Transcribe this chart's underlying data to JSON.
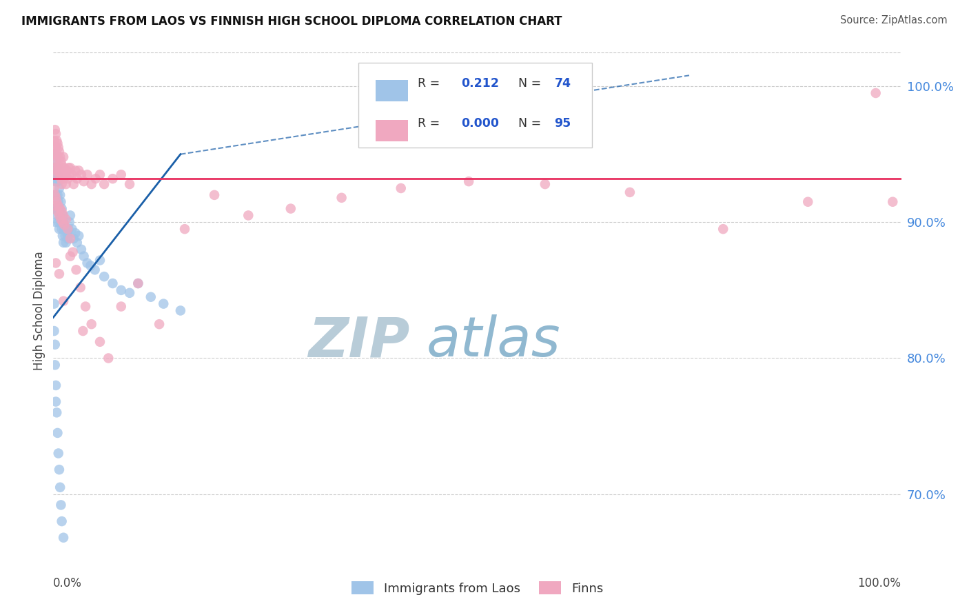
{
  "title": "IMMIGRANTS FROM LAOS VS FINNISH HIGH SCHOOL DIPLOMA CORRELATION CHART",
  "source": "Source: ZipAtlas.com",
  "ylabel": "High School Diploma",
  "xlim": [
    0.0,
    1.0
  ],
  "ylim": [
    0.645,
    1.025
  ],
  "ytick_positions": [
    0.7,
    0.8,
    0.9,
    1.0
  ],
  "ytick_labels": [
    "70.0%",
    "80.0%",
    "90.0%",
    "100.0%"
  ],
  "legend_blue_r": "0.212",
  "legend_blue_n": "74",
  "legend_pink_r": "0.000",
  "legend_pink_n": "95",
  "legend_label_blue": "Immigrants from Laos",
  "legend_label_pink": "Finns",
  "blue_color": "#a0c4e8",
  "pink_color": "#f0a8c0",
  "trend_blue_color": "#1a5fa8",
  "trend_pink_color": "#e83060",
  "watermark_zip_color": "#b0c8d8",
  "watermark_atlas_color": "#90b8d0",
  "blue_dots_x": [
    0.001,
    0.001,
    0.001,
    0.002,
    0.002,
    0.002,
    0.002,
    0.003,
    0.003,
    0.003,
    0.003,
    0.004,
    0.004,
    0.004,
    0.005,
    0.005,
    0.005,
    0.006,
    0.006,
    0.006,
    0.007,
    0.007,
    0.007,
    0.008,
    0.008,
    0.009,
    0.009,
    0.01,
    0.01,
    0.011,
    0.011,
    0.012,
    0.012,
    0.013,
    0.014,
    0.015,
    0.016,
    0.017,
    0.018,
    0.019,
    0.02,
    0.022,
    0.024,
    0.026,
    0.028,
    0.03,
    0.033,
    0.036,
    0.04,
    0.044,
    0.049,
    0.055,
    0.06,
    0.07,
    0.08,
    0.09,
    0.1,
    0.115,
    0.13,
    0.15,
    0.001,
    0.001,
    0.002,
    0.002,
    0.003,
    0.003,
    0.004,
    0.005,
    0.006,
    0.007,
    0.008,
    0.009,
    0.01,
    0.012
  ],
  "blue_dots_y": [
    0.94,
    0.92,
    0.91,
    0.95,
    0.93,
    0.92,
    0.91,
    0.945,
    0.935,
    0.92,
    0.9,
    0.94,
    0.93,
    0.91,
    0.935,
    0.92,
    0.905,
    0.93,
    0.915,
    0.9,
    0.925,
    0.91,
    0.895,
    0.92,
    0.905,
    0.915,
    0.9,
    0.91,
    0.895,
    0.905,
    0.89,
    0.9,
    0.885,
    0.895,
    0.89,
    0.885,
    0.892,
    0.888,
    0.895,
    0.9,
    0.905,
    0.895,
    0.888,
    0.892,
    0.885,
    0.89,
    0.88,
    0.875,
    0.87,
    0.868,
    0.865,
    0.872,
    0.86,
    0.855,
    0.85,
    0.848,
    0.855,
    0.845,
    0.84,
    0.835,
    0.84,
    0.82,
    0.81,
    0.795,
    0.78,
    0.768,
    0.76,
    0.745,
    0.73,
    0.718,
    0.705,
    0.692,
    0.68,
    0.668
  ],
  "pink_dots_x": [
    0.001,
    0.001,
    0.002,
    0.002,
    0.002,
    0.003,
    0.003,
    0.003,
    0.004,
    0.004,
    0.004,
    0.005,
    0.005,
    0.005,
    0.006,
    0.006,
    0.007,
    0.007,
    0.008,
    0.008,
    0.009,
    0.009,
    0.01,
    0.01,
    0.011,
    0.012,
    0.012,
    0.013,
    0.014,
    0.015,
    0.016,
    0.017,
    0.018,
    0.019,
    0.02,
    0.022,
    0.024,
    0.026,
    0.028,
    0.03,
    0.033,
    0.036,
    0.04,
    0.045,
    0.05,
    0.055,
    0.06,
    0.07,
    0.08,
    0.09,
    0.001,
    0.002,
    0.003,
    0.003,
    0.004,
    0.005,
    0.006,
    0.007,
    0.008,
    0.009,
    0.01,
    0.011,
    0.012,
    0.013,
    0.015,
    0.017,
    0.02,
    0.023,
    0.027,
    0.032,
    0.038,
    0.045,
    0.055,
    0.065,
    0.08,
    0.1,
    0.125,
    0.155,
    0.19,
    0.23,
    0.28,
    0.34,
    0.41,
    0.49,
    0.58,
    0.68,
    0.79,
    0.89,
    0.97,
    0.99,
    0.003,
    0.007,
    0.012,
    0.02,
    0.035
  ],
  "pink_dots_y": [
    0.96,
    0.95,
    0.968,
    0.955,
    0.945,
    0.965,
    0.955,
    0.94,
    0.96,
    0.95,
    0.938,
    0.958,
    0.948,
    0.935,
    0.955,
    0.942,
    0.952,
    0.938,
    0.948,
    0.935,
    0.945,
    0.932,
    0.942,
    0.928,
    0.938,
    0.948,
    0.932,
    0.94,
    0.935,
    0.928,
    0.938,
    0.932,
    0.94,
    0.935,
    0.94,
    0.935,
    0.928,
    0.938,
    0.932,
    0.938,
    0.935,
    0.93,
    0.935,
    0.928,
    0.932,
    0.935,
    0.928,
    0.932,
    0.935,
    0.928,
    0.925,
    0.92,
    0.918,
    0.912,
    0.915,
    0.908,
    0.912,
    0.905,
    0.91,
    0.902,
    0.908,
    0.9,
    0.905,
    0.898,
    0.902,
    0.895,
    0.888,
    0.878,
    0.865,
    0.852,
    0.838,
    0.825,
    0.812,
    0.8,
    0.838,
    0.855,
    0.825,
    0.895,
    0.92,
    0.905,
    0.91,
    0.918,
    0.925,
    0.93,
    0.928,
    0.922,
    0.895,
    0.915,
    0.995,
    0.915,
    0.87,
    0.862,
    0.842,
    0.875,
    0.82
  ],
  "trend_blue_x0": 0.0,
  "trend_blue_y0": 0.83,
  "trend_blue_x1": 0.15,
  "trend_blue_y1": 0.95,
  "trend_blue_dash_x1": 0.75,
  "trend_blue_dash_y1": 1.008,
  "trend_pink_y": 0.932
}
